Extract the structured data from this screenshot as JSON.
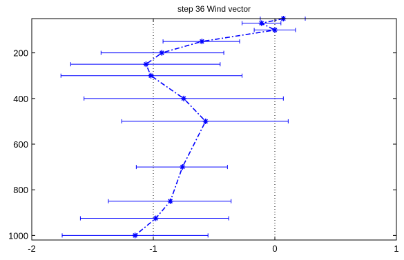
{
  "chart_data": {
    "type": "scatter",
    "title": "step 36 Wind vector",
    "xlabel": "",
    "ylabel": "",
    "xlim": [
      -2,
      1
    ],
    "ylim": [
      1020,
      50
    ],
    "y_reversed": true,
    "x_ticks": [
      "-2",
      "-1",
      "0",
      "1"
    ],
    "x_tick_values": [
      -2,
      -1,
      0,
      1
    ],
    "y_ticks": [
      "200",
      "400",
      "600",
      "800",
      "1000"
    ],
    "y_tick_values": [
      200,
      400,
      600,
      800,
      1000
    ],
    "grid_x": [
      -1,
      0
    ],
    "grid_style": "dotted",
    "series": [
      {
        "style": "dash-dot",
        "marker": "asterisk",
        "color": "#0000ff",
        "points": [
          {
            "y": 50,
            "x": 0.07,
            "xerr_low": -0.12,
            "xerr_high": 0.25
          },
          {
            "y": 70,
            "x": -0.11,
            "xerr_low": -0.27,
            "xerr_high": 0.05
          },
          {
            "y": 100,
            "x": 0.0,
            "xerr_low": -0.17,
            "xerr_high": 0.17
          },
          {
            "y": 150,
            "x": -0.6,
            "xerr_low": -0.92,
            "xerr_high": -0.29
          },
          {
            "y": 200,
            "x": -0.93,
            "xerr_low": -1.43,
            "xerr_high": -0.42
          },
          {
            "y": 250,
            "x": -1.06,
            "xerr_low": -1.68,
            "xerr_high": -0.45
          },
          {
            "y": 300,
            "x": -1.02,
            "xerr_low": -1.76,
            "xerr_high": -0.27
          },
          {
            "y": 400,
            "x": -0.75,
            "xerr_low": -1.57,
            "xerr_high": 0.07
          },
          {
            "y": 500,
            "x": -0.57,
            "xerr_low": -1.26,
            "xerr_high": 0.11
          },
          {
            "y": 700,
            "x": -0.76,
            "xerr_low": -1.14,
            "xerr_high": -0.39
          },
          {
            "y": 850,
            "x": -0.86,
            "xerr_low": -1.37,
            "xerr_high": -0.36
          },
          {
            "y": 925,
            "x": -0.98,
            "xerr_low": -1.6,
            "xerr_high": -0.38
          },
          {
            "y": 1000,
            "x": -1.15,
            "xerr_low": -1.75,
            "xerr_high": -0.55
          }
        ]
      }
    ]
  }
}
